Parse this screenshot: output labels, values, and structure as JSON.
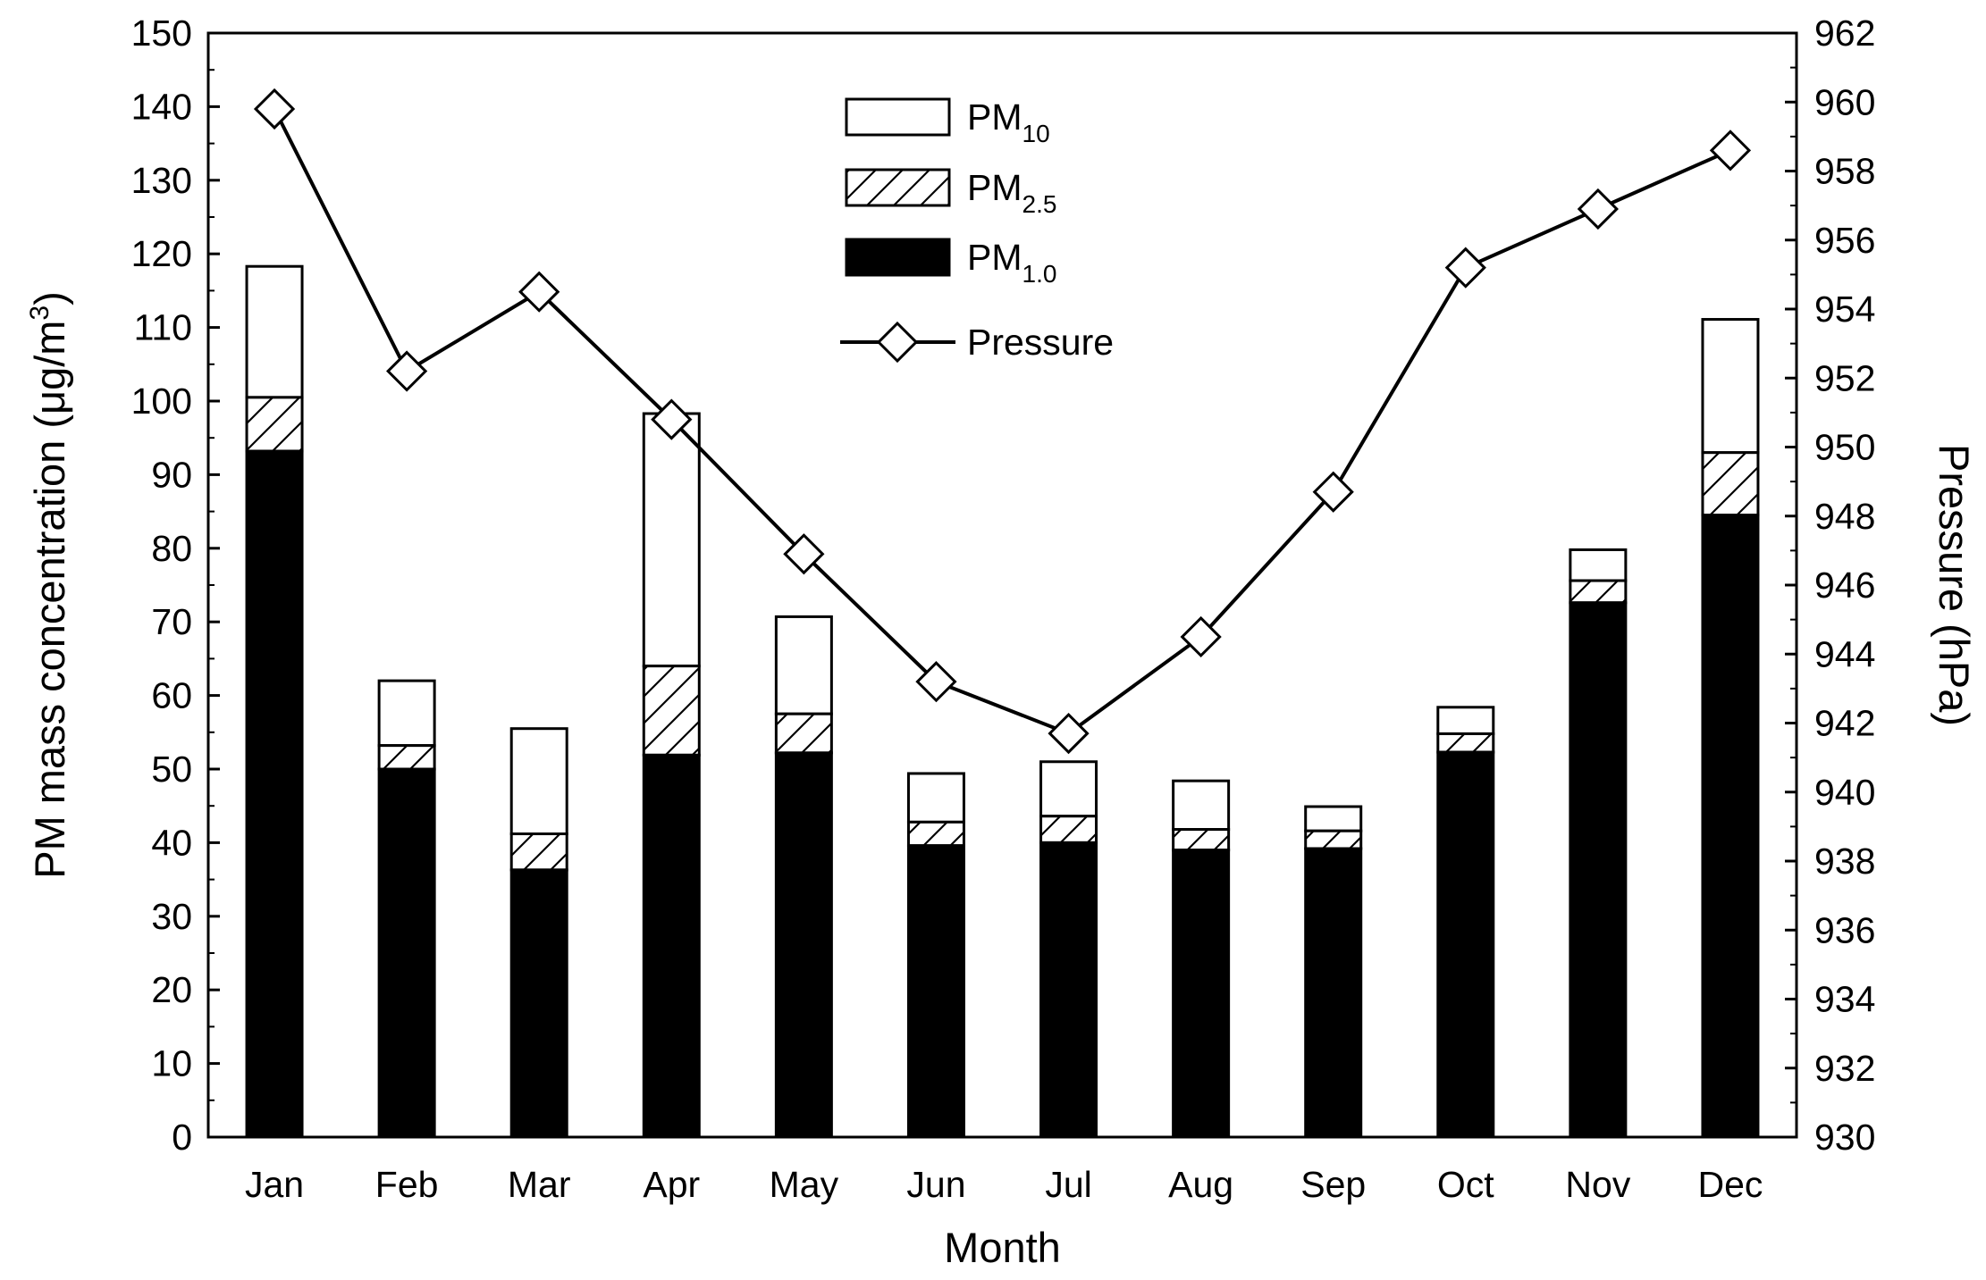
{
  "chart_data": {
    "type": "bar",
    "stacked": true,
    "categories": [
      "Jan",
      "Feb",
      "Mar",
      "Apr",
      "May",
      "Jun",
      "Jul",
      "Aug",
      "Sep",
      "Oct",
      "Nov",
      "Dec"
    ],
    "series": [
      {
        "name": "PM1.0",
        "label_main": "PM",
        "label_sub": "1.0",
        "fill": "solid",
        "values": [
          93.2,
          50.0,
          36.3,
          51.9,
          52.2,
          39.6,
          40.0,
          39.0,
          39.2,
          52.3,
          72.6,
          84.5
        ]
      },
      {
        "name": "PM2.5",
        "label_main": "PM",
        "label_sub": "2.5",
        "fill": "hatch",
        "values": [
          100.5,
          53.2,
          41.2,
          64.0,
          57.5,
          42.8,
          43.6,
          41.8,
          41.6,
          54.8,
          75.6,
          93.0
        ]
      },
      {
        "name": "PM10",
        "label_main": "PM",
        "label_sub": "10",
        "fill": "empty",
        "values": [
          118.3,
          62.0,
          55.5,
          98.3,
          70.7,
          49.4,
          51.0,
          48.4,
          44.9,
          58.4,
          79.8,
          111.1
        ]
      },
      {
        "name": "Pressure",
        "label_main": "Pressure",
        "axis": "right",
        "kind": "line",
        "marker": "diamond",
        "values": [
          959.8,
          952.2,
          954.5,
          950.8,
          946.9,
          943.2,
          941.7,
          944.5,
          948.7,
          955.2,
          956.9,
          958.6
        ]
      }
    ],
    "xlabel": "Month",
    "ylabel_left": "PM mass concentration (μg/m",
    "ylabel_left_sup": "3",
    "ylabel_left_close": ")",
    "ylabel_right": "Pressure (hPa)",
    "ylim_left": [
      0,
      150
    ],
    "yticks_left": [
      "0",
      "10",
      "20",
      "30",
      "40",
      "50",
      "60",
      "70",
      "80",
      "90",
      "100",
      "110",
      "120",
      "130",
      "140",
      "150"
    ],
    "ylim_right": [
      930,
      962
    ],
    "yticks_right": [
      "930",
      "932",
      "934",
      "936",
      "938",
      "940",
      "942",
      "944",
      "946",
      "948",
      "950",
      "952",
      "954",
      "956",
      "958",
      "960",
      "962"
    ],
    "legend_position": "top-center",
    "grid": false,
    "colors": {
      "bar_solid": "#000000",
      "bar_outline": "#000000",
      "line": "#000000",
      "marker_fill": "#ffffff"
    }
  }
}
